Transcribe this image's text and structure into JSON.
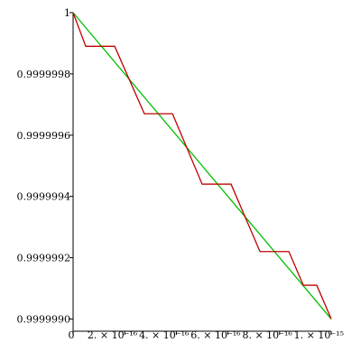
{
  "chart_data": {
    "type": "line",
    "series": [
      {
        "color": "#00c000",
        "x": [
          0,
          1e-15
        ],
        "values": [
          1,
          0.999999
        ]
      },
      {
        "color": "#c00000",
        "x": [
          0,
          4.9e-17,
          1.61e-16,
          2.76e-16,
          3.85e-16,
          5e-16,
          6.12e-16,
          7.24e-16,
          8.36e-16,
          8.92e-16,
          9.44e-16,
          1e-15
        ],
        "values": [
          1,
          0.99999989,
          0.99999989,
          0.99999967,
          0.99999967,
          0.99999944,
          0.99999944,
          0.99999922,
          0.99999922,
          0.99999911,
          0.99999911,
          0.999999
        ]
      }
    ],
    "xlim": [
      0,
      1e-15
    ],
    "ylim": [
      0.99999896,
      1
    ],
    "xticks": [
      0,
      {
        "value": 2e-16,
        "label": "2. × 10⁻¹⁶"
      },
      {
        "value": 4e-16,
        "label": "4. × 10⁻¹⁶"
      },
      {
        "value": 6e-16,
        "label": "6. × 10⁻¹⁶"
      },
      {
        "value": 8e-16,
        "label": "8. × 10⁻¹⁶"
      },
      {
        "value": 1e-15,
        "label": "1. × 10⁻¹⁵"
      }
    ],
    "yticks": [
      1,
      0.9999998,
      0.9999996,
      0.9999994,
      0.9999992,
      {
        "value": 0.999999,
        "label": "0.9999990"
      }
    ]
  }
}
